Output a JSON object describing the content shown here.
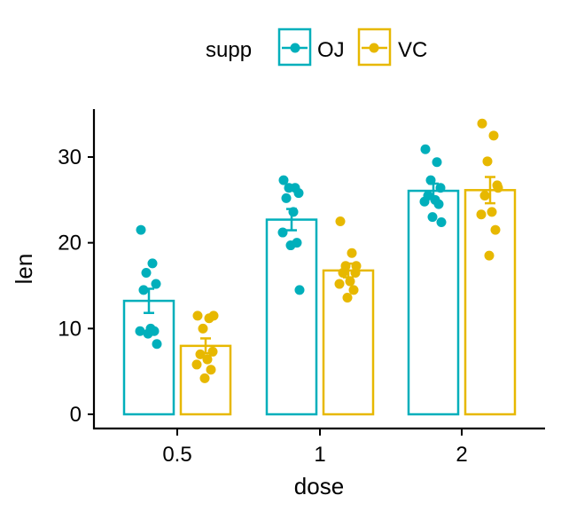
{
  "chart_data": {
    "type": "bar",
    "title": "",
    "xlabel": "dose",
    "ylabel": "len",
    "categories": [
      "0.5",
      "1",
      "2"
    ],
    "ylim": [
      0,
      35
    ],
    "yticks": [
      0,
      10,
      20,
      30
    ],
    "grid": false,
    "legend": {
      "title": "supp",
      "placement": "top",
      "entries": [
        "OJ",
        "VC"
      ]
    },
    "colors": {
      "OJ": "#00AFBB",
      "VC": "#E7B800"
    },
    "series": [
      {
        "name": "OJ",
        "values": [
          13.23,
          22.7,
          26.06
        ],
        "se": [
          1.41,
          1.24,
          0.84
        ],
        "points": [
          [
            21.5,
            17.6,
            16.5,
            15.2,
            14.5,
            10.0,
            9.7,
            9.7,
            9.4,
            8.2
          ],
          [
            27.3,
            26.4,
            26.4,
            25.8,
            25.2,
            23.6,
            21.2,
            20.0,
            19.7,
            14.5
          ],
          [
            30.9,
            29.4,
            27.3,
            26.4,
            25.5,
            25.0,
            24.8,
            24.5,
            23.0,
            22.4
          ]
        ]
      },
      {
        "name": "VC",
        "values": [
          7.98,
          16.77,
          26.14
        ],
        "se": [
          0.87,
          0.8,
          1.53
        ],
        "points": [
          [
            11.5,
            11.2,
            10.0,
            7.3,
            7.0,
            6.4,
            5.8,
            5.2,
            4.2,
            11.5
          ],
          [
            22.5,
            18.8,
            17.3,
            16.5,
            16.5,
            15.5,
            15.2,
            14.5,
            13.6,
            17.3
          ],
          [
            33.9,
            32.5,
            29.5,
            26.7,
            25.5,
            23.6,
            23.3,
            21.5,
            18.5,
            26.4
          ]
        ]
      }
    ]
  }
}
